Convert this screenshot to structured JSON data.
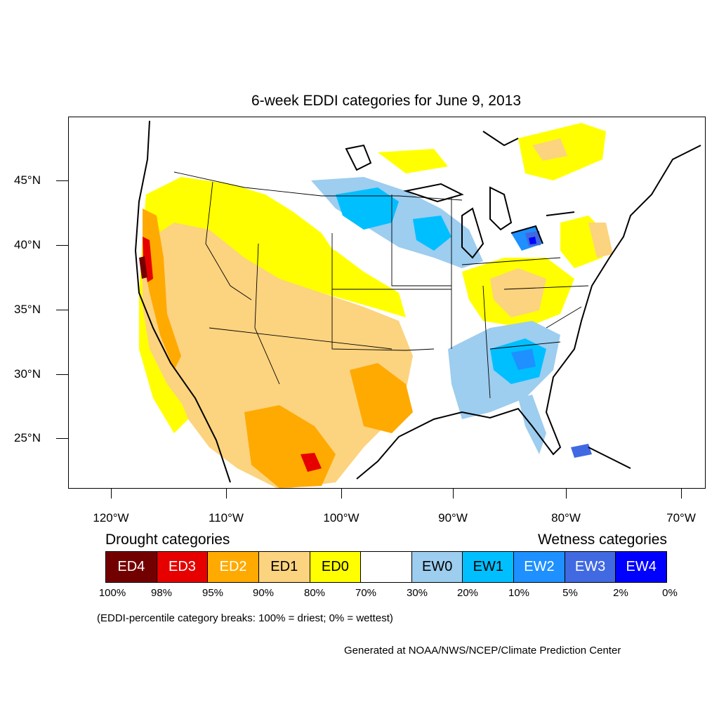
{
  "title": "6-week EDDI categories for June 9, 2013",
  "latitude_labels": [
    "45°N",
    "40°N",
    "35°N",
    "30°N",
    "25°N"
  ],
  "longitude_labels": [
    "120°W",
    "110°W",
    "100°W",
    "90°W",
    "80°W",
    "70°W"
  ],
  "legend": {
    "drought_title": "Drought categories",
    "wetness_title": "Wetness categories",
    "categories": [
      {
        "label": "ED4",
        "color": "#730000",
        "text_color": "#ffffff"
      },
      {
        "label": "ED3",
        "color": "#e60000",
        "text_color": "#ffffff"
      },
      {
        "label": "ED2",
        "color": "#ffaa00",
        "text_color": "#ffffff"
      },
      {
        "label": "ED1",
        "color": "#fcd37f",
        "text_color": "#000000"
      },
      {
        "label": "ED0",
        "color": "#ffff00",
        "text_color": "#000000"
      },
      {
        "label": "",
        "color": "#ffffff",
        "text_color": "#000000"
      },
      {
        "label": "EW0",
        "color": "#9dcdef",
        "text_color": "#000000"
      },
      {
        "label": "EW1",
        "color": "#00bfff",
        "text_color": "#000000"
      },
      {
        "label": "EW2",
        "color": "#1e90ff",
        "text_color": "#ffffff"
      },
      {
        "label": "EW3",
        "color": "#4169e1",
        "text_color": "#ffffff"
      },
      {
        "label": "EW4",
        "color": "#0000ff",
        "text_color": "#ffffff"
      }
    ],
    "percent_breaks": [
      "100%",
      "98%",
      "95%",
      "90%",
      "80%",
      "70%",
      "30%",
      "20%",
      "10%",
      "5%",
      "2%",
      "0%"
    ]
  },
  "note": "(EDDI-percentile category breaks: 100% = driest; 0% = wettest)",
  "credit": "Generated at NOAA/NWS/NCEP/Climate Prediction Center"
}
